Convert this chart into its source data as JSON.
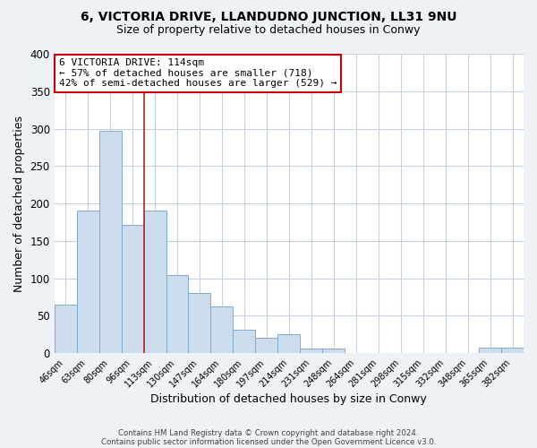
{
  "title1": "6, VICTORIA DRIVE, LLANDUDNO JUNCTION, LL31 9NU",
  "title2": "Size of property relative to detached houses in Conwy",
  "xlabel": "Distribution of detached houses by size in Conwy",
  "ylabel": "Number of detached properties",
  "bar_color": "#ccdcec",
  "bar_edge_color": "#7faacb",
  "categories": [
    "46sqm",
    "63sqm",
    "80sqm",
    "96sqm",
    "113sqm",
    "130sqm",
    "147sqm",
    "164sqm",
    "180sqm",
    "197sqm",
    "214sqm",
    "231sqm",
    "248sqm",
    "264sqm",
    "281sqm",
    "298sqm",
    "315sqm",
    "332sqm",
    "348sqm",
    "365sqm",
    "382sqm"
  ],
  "values": [
    65,
    190,
    297,
    172,
    190,
    105,
    80,
    62,
    31,
    21,
    25,
    6,
    6,
    0,
    0,
    0,
    0,
    0,
    0,
    7,
    8
  ],
  "red_line_x": 3.5,
  "ylim": [
    0,
    400
  ],
  "yticks": [
    0,
    50,
    100,
    150,
    200,
    250,
    300,
    350,
    400
  ],
  "annotation_title": "6 VICTORIA DRIVE: 114sqm",
  "annotation_line1": "← 57% of detached houses are smaller (718)",
  "annotation_line2": "42% of semi-detached houses are larger (529) →",
  "annotation_box_color": "#ffffff",
  "annotation_box_edge": "#cc0000",
  "footer1": "Contains HM Land Registry data © Crown copyright and database right 2024.",
  "footer2": "Contains public sector information licensed under the Open Government Licence v3.0.",
  "background_color": "#eef2f7",
  "plot_background": "#ffffff",
  "grid_color": "#c8d0dc",
  "title_fontsize": 10,
  "subtitle_fontsize": 9
}
